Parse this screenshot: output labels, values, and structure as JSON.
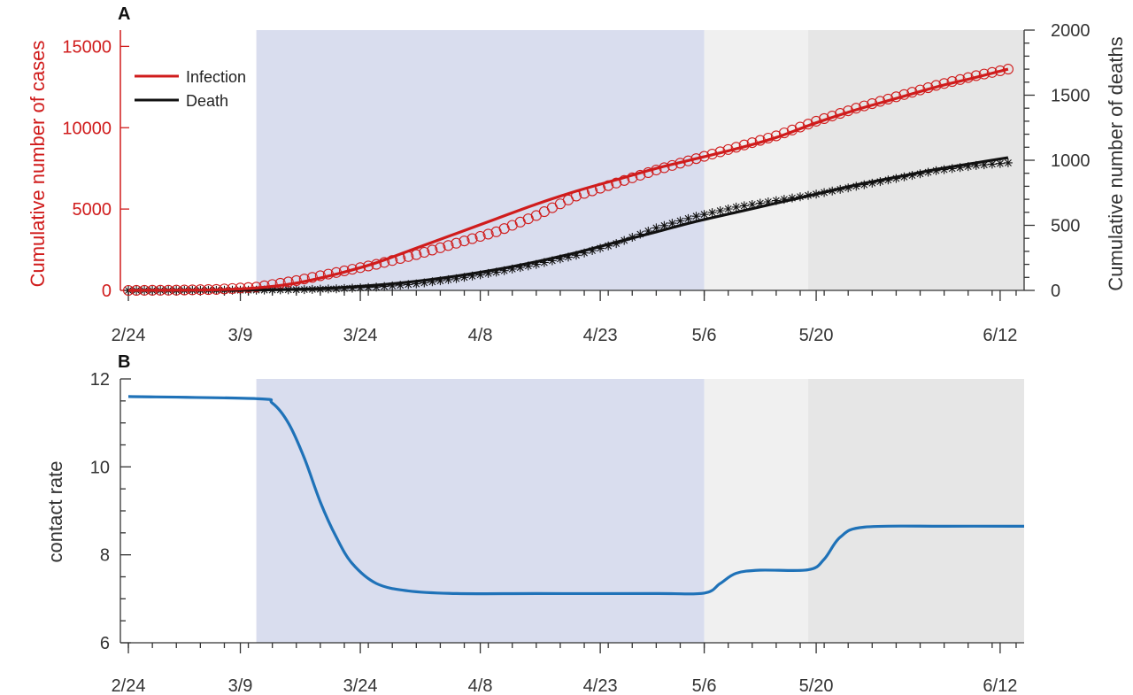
{
  "colors": {
    "infection": "#d01c1c",
    "death": "#111111",
    "contact": "#1f72b8",
    "axis": "#333333",
    "shade_lockdown": "#d9ddee",
    "shade_phase1": "#f0f0f0",
    "shade_phase2": "#e6e6e6"
  },
  "chart_data": [
    {
      "panel_label": "A",
      "type": "line",
      "x_axis": {
        "type": "date",
        "range": [
          "2020-02-23",
          "2020-06-15"
        ],
        "ticks": [
          "2020-02-24",
          "2020-03-09",
          "2020-03-24",
          "2020-04-08",
          "2020-04-23",
          "2020-05-06",
          "2020-05-20",
          "2020-06-12"
        ],
        "tick_labels": [
          "2/24",
          "3/9",
          "3/24",
          "4/8",
          "4/23",
          "5/6",
          "5/20",
          "6/12"
        ]
      },
      "left_axis": {
        "label": "Cumulative number of cases",
        "ylim": [
          0,
          16000
        ],
        "ticks": [
          0,
          5000,
          10000,
          15000
        ],
        "tick_labels": [
          "0",
          "5000",
          "10000",
          "15000"
        ]
      },
      "right_axis": {
        "label": "Cumulative number of deaths",
        "ylim": [
          0,
          2000
        ],
        "ticks": [
          0,
          500,
          1000,
          1500,
          2000
        ],
        "tick_labels": [
          "0",
          "500",
          "1000",
          "1500",
          "2000"
        ]
      },
      "shaded_regions": [
        {
          "start": "2020-03-11",
          "end": "2020-05-06",
          "color": "#d9ddee"
        },
        {
          "start": "2020-05-06",
          "end": "2020-05-19",
          "color": "#f0f0f0"
        },
        {
          "start": "2020-05-19",
          "end": "2020-06-15",
          "color": "#e6e6e6"
        }
      ],
      "legend": {
        "placement": "top-left",
        "entries": [
          "Infection",
          "Death"
        ]
      },
      "series": [
        {
          "name": "Infection",
          "axis": "left",
          "style": "line",
          "x": [
            "2020-02-24",
            "2020-03-01",
            "2020-03-06",
            "2020-03-11",
            "2020-03-16",
            "2020-03-21",
            "2020-03-26",
            "2020-03-31",
            "2020-04-05",
            "2020-04-10",
            "2020-04-15",
            "2020-04-20",
            "2020-04-25",
            "2020-04-30",
            "2020-05-05",
            "2020-05-10",
            "2020-05-15",
            "2020-05-20",
            "2020-05-25",
            "2020-05-30",
            "2020-06-04",
            "2020-06-09",
            "2020-06-13"
          ],
          "values": [
            0,
            10,
            40,
            150,
            450,
            1000,
            1700,
            2600,
            3500,
            4400,
            5300,
            6100,
            6800,
            7500,
            8100,
            8700,
            9400,
            10300,
            11100,
            11800,
            12500,
            13100,
            13600
          ]
        },
        {
          "name": "Infection",
          "axis": "left",
          "style": "markers-circle",
          "x": [
            "2020-02-24",
            "2020-03-01",
            "2020-03-06",
            "2020-03-11",
            "2020-03-16",
            "2020-03-21",
            "2020-03-26",
            "2020-03-31",
            "2020-04-05",
            "2020-04-10",
            "2020-04-15",
            "2020-04-20",
            "2020-04-25",
            "2020-04-30",
            "2020-05-05",
            "2020-05-10",
            "2020-05-15",
            "2020-05-20",
            "2020-05-25",
            "2020-05-30",
            "2020-06-04",
            "2020-06-09",
            "2020-06-13"
          ],
          "values": [
            0,
            15,
            60,
            200,
            600,
            1100,
            1600,
            2200,
            2900,
            3600,
            4600,
            5800,
            6600,
            7400,
            8100,
            8800,
            9500,
            10400,
            11200,
            11900,
            12600,
            13200,
            13600
          ]
        },
        {
          "name": "Death",
          "axis": "right",
          "style": "line",
          "x": [
            "2020-02-24",
            "2020-03-01",
            "2020-03-06",
            "2020-03-11",
            "2020-03-16",
            "2020-03-21",
            "2020-03-26",
            "2020-03-31",
            "2020-04-05",
            "2020-04-10",
            "2020-04-15",
            "2020-04-20",
            "2020-04-25",
            "2020-04-30",
            "2020-05-05",
            "2020-05-10",
            "2020-05-15",
            "2020-05-20",
            "2020-05-25",
            "2020-05-30",
            "2020-06-04",
            "2020-06-09",
            "2020-06-13"
          ],
          "values": [
            0,
            0,
            1,
            3,
            8,
            20,
            40,
            70,
            110,
            160,
            220,
            290,
            370,
            450,
            530,
            600,
            670,
            740,
            810,
            870,
            930,
            980,
            1020
          ]
        },
        {
          "name": "Death",
          "axis": "right",
          "style": "markers-asterisk",
          "x": [
            "2020-02-24",
            "2020-03-01",
            "2020-03-06",
            "2020-03-11",
            "2020-03-16",
            "2020-03-21",
            "2020-03-26",
            "2020-03-31",
            "2020-04-05",
            "2020-04-10",
            "2020-04-15",
            "2020-04-20",
            "2020-04-25",
            "2020-04-30",
            "2020-05-05",
            "2020-05-10",
            "2020-05-15",
            "2020-05-20",
            "2020-05-25",
            "2020-05-30",
            "2020-06-04",
            "2020-06-09",
            "2020-06-13"
          ],
          "values": [
            0,
            0,
            1,
            2,
            5,
            12,
            25,
            50,
            90,
            140,
            200,
            270,
            360,
            480,
            570,
            640,
            690,
            740,
            800,
            860,
            920,
            960,
            980
          ]
        }
      ]
    },
    {
      "panel_label": "B",
      "type": "line",
      "x_axis": {
        "type": "date",
        "range": [
          "2020-02-23",
          "2020-06-15"
        ],
        "ticks": [
          "2020-02-24",
          "2020-03-09",
          "2020-03-24",
          "2020-04-08",
          "2020-04-23",
          "2020-05-06",
          "2020-05-20",
          "2020-06-12"
        ],
        "tick_labels": [
          "2/24",
          "3/9",
          "3/24",
          "4/8",
          "4/23",
          "5/6",
          "5/20",
          "6/12"
        ]
      },
      "y_axis": {
        "label": "contact rate",
        "ylim": [
          6,
          12
        ],
        "ticks": [
          6,
          8,
          10,
          12
        ],
        "tick_labels": [
          "6",
          "8",
          "10",
          "12"
        ]
      },
      "shaded_regions": [
        {
          "start": "2020-03-11",
          "end": "2020-05-06",
          "color": "#d9ddee"
        },
        {
          "start": "2020-05-06",
          "end": "2020-05-19",
          "color": "#f0f0f0"
        },
        {
          "start": "2020-05-19",
          "end": "2020-06-15",
          "color": "#e6e6e6"
        }
      ],
      "series": [
        {
          "style": "line",
          "x": [
            "2020-02-24",
            "2020-03-11",
            "2020-03-13",
            "2020-03-15",
            "2020-03-17",
            "2020-03-19",
            "2020-03-21",
            "2020-03-23",
            "2020-03-26",
            "2020-03-30",
            "2020-04-05",
            "2020-04-15",
            "2020-04-30",
            "2020-05-06",
            "2020-05-08",
            "2020-05-10",
            "2020-05-13",
            "2020-05-19",
            "2020-05-21",
            "2020-05-23",
            "2020-05-26",
            "2020-06-05",
            "2020-06-15"
          ],
          "values": [
            11.6,
            11.55,
            11.45,
            11.0,
            10.2,
            9.2,
            8.4,
            7.8,
            7.35,
            7.18,
            7.12,
            7.12,
            7.12,
            7.13,
            7.35,
            7.58,
            7.65,
            7.66,
            7.9,
            8.4,
            8.63,
            8.65,
            8.65
          ]
        }
      ]
    }
  ]
}
